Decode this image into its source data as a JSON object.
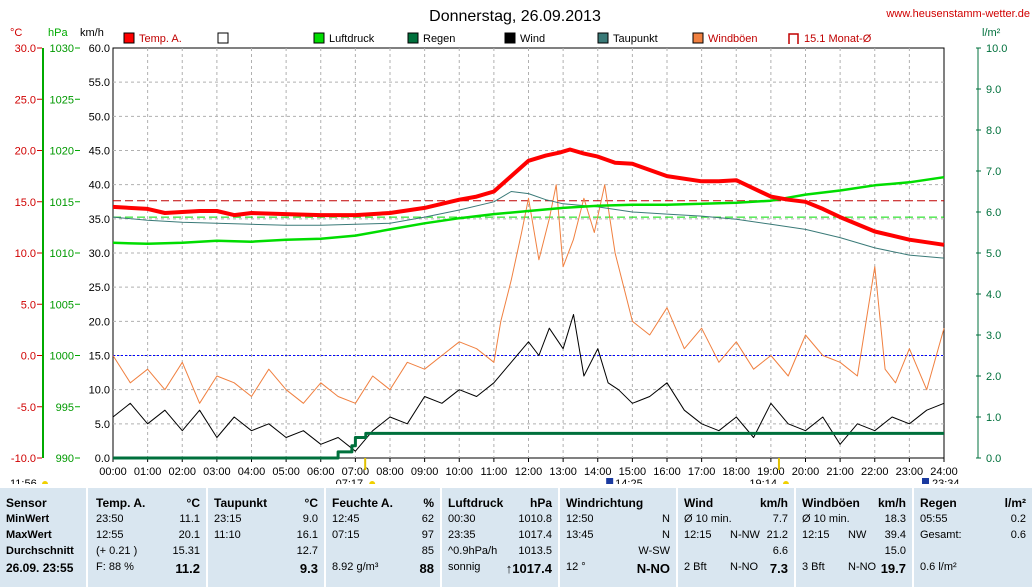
{
  "title": "Donnerstag, 26.09.2013",
  "website": "www.heusenstamm-wetter.de",
  "units": {
    "temp": "°C",
    "pressure": "hPa",
    "speed": "km/h",
    "rain": "l/m²"
  },
  "legend": [
    {
      "label": "Temp. A.",
      "color": "#ff0000"
    },
    {
      "label": "",
      "color": "#ffffff"
    },
    {
      "label": "Luftdruck",
      "color": "#00dd00"
    },
    {
      "label": "Regen",
      "color": "#00703c"
    },
    {
      "label": "Wind",
      "color": "#000000"
    },
    {
      "label": "Taupunkt",
      "color": "#3a7a78"
    },
    {
      "label": "Windböen",
      "color": "#f08040"
    },
    {
      "label": "15.1 Monat-Ø",
      "color": "#c00000"
    }
  ],
  "markers": {
    "sunrise": "07:17",
    "sunset": "19:14",
    "start": "11:56",
    "end": "23:34",
    "wind_max_time": "14:25"
  },
  "chart_data": {
    "type": "line",
    "x_ticks": [
      "00:00",
      "01:00",
      "02:00",
      "03:00",
      "04:00",
      "05:00",
      "06:00",
      "07:00",
      "08:00",
      "09:00",
      "10:00",
      "11:00",
      "12:00",
      "13:00",
      "14:00",
      "15:00",
      "16:00",
      "17:00",
      "18:00",
      "19:00",
      "20:00",
      "21:00",
      "22:00",
      "23:00",
      "24:00"
    ],
    "axes": {
      "temp": {
        "label": "°C",
        "ylim": [
          -10,
          30
        ],
        "ticks": [
          "30.0",
          "25.0",
          "20.0",
          "15.0",
          "10.0",
          "5.0",
          "0.0",
          "-5.0",
          "-10.0"
        ]
      },
      "pressure": {
        "label": "hPa",
        "ylim": [
          990,
          1030
        ],
        "ticks": [
          "1030",
          "1025",
          "1020",
          "1015",
          "1010",
          "1005",
          "1000",
          "995",
          "990"
        ]
      },
      "wind": {
        "label": "km/h",
        "ylim": [
          0,
          60
        ],
        "ticks": [
          "60.0",
          "55.0",
          "50.0",
          "45.0",
          "40.0",
          "35.0",
          "30.0",
          "25.0",
          "20.0",
          "15.0",
          "10.0",
          "5.0",
          "0.0"
        ]
      },
      "rain": {
        "label": "l/m²",
        "ylim": [
          0,
          10
        ],
        "ticks": [
          "10.0",
          "9.0",
          "8.0",
          "7.0",
          "6.0",
          "5.0",
          "4.0",
          "3.0",
          "2.0",
          "1.0",
          "0.0"
        ]
      }
    },
    "reference_lines": [
      {
        "name": "15.1 Monat-Ø",
        "axis": "temp",
        "value": 15.1,
        "color": "#c00000"
      },
      {
        "name": "zero",
        "axis": "temp",
        "value": 0.0,
        "color": "#0000ff"
      },
      {
        "name": "pressure-ref",
        "axis": "pressure",
        "value": 1013.5,
        "color": "#00dd00"
      }
    ],
    "series": [
      {
        "name": "Temp. A.",
        "axis": "temp",
        "color": "#ff0000",
        "x": [
          0,
          1,
          1.5,
          2,
          2.5,
          3,
          3.5,
          4,
          5,
          6,
          7,
          8,
          9,
          9.5,
          10,
          10.5,
          11,
          11.5,
          12,
          12.5,
          12.9,
          13.2,
          13.6,
          14,
          14.5,
          15,
          16,
          17,
          17.5,
          18,
          18.5,
          19,
          19.5,
          20,
          20.5,
          21,
          22,
          23,
          24
        ],
        "y": [
          14.5,
          14.3,
          13.9,
          14.0,
          14.1,
          14.1,
          13.7,
          13.9,
          13.8,
          13.7,
          13.7,
          13.9,
          14.4,
          14.8,
          15.2,
          15.5,
          16.0,
          17.5,
          19.0,
          19.5,
          19.8,
          20.1,
          19.7,
          19.4,
          18.8,
          18.7,
          17.5,
          17.0,
          17.0,
          17.1,
          16.3,
          15.5,
          15.2,
          15.0,
          14.3,
          13.5,
          12.1,
          11.3,
          10.8
        ]
      },
      {
        "name": "Taupunkt",
        "axis": "temp",
        "color": "#3a7a78",
        "x": [
          0,
          1,
          2,
          3,
          4,
          5,
          6,
          7,
          8,
          9,
          10,
          11,
          11.5,
          12,
          12.5,
          13,
          14,
          15,
          16,
          17,
          18,
          19,
          20,
          21,
          22,
          23,
          24
        ],
        "y": [
          13.5,
          13.2,
          13.0,
          12.9,
          12.8,
          12.7,
          12.7,
          12.8,
          12.9,
          13.5,
          14.2,
          15.0,
          16.0,
          15.8,
          15.2,
          14.8,
          14.5,
          14.0,
          13.8,
          13.6,
          13.3,
          12.8,
          12.3,
          11.5,
          10.5,
          9.8,
          9.5
        ]
      },
      {
        "name": "Luftdruck",
        "axis": "pressure",
        "color": "#00dd00",
        "x": [
          0,
          1,
          2,
          3,
          4,
          5,
          6,
          7,
          8,
          9,
          10,
          11,
          12,
          13,
          14,
          15,
          16,
          17,
          18,
          19,
          20,
          21,
          22,
          23,
          24
        ],
        "y": [
          1011.0,
          1010.9,
          1011.0,
          1011.2,
          1011.1,
          1011.3,
          1011.4,
          1011.7,
          1012.3,
          1012.9,
          1013.4,
          1013.8,
          1014.1,
          1014.4,
          1014.6,
          1014.7,
          1014.7,
          1014.8,
          1014.9,
          1015.1,
          1015.7,
          1016.1,
          1016.6,
          1016.9,
          1017.4
        ]
      },
      {
        "name": "Regen",
        "axis": "rain",
        "color": "#00703c",
        "x": [
          0,
          6.0,
          6.5,
          6.9,
          7.0,
          7.3,
          24
        ],
        "y": [
          0,
          0,
          0.15,
          0.3,
          0.5,
          0.6,
          0.6
        ]
      },
      {
        "name": "Wind",
        "axis": "wind",
        "color": "#000000",
        "x": [
          0,
          0.5,
          1,
          1.5,
          2,
          2.5,
          3,
          3.5,
          4,
          4.5,
          5,
          5.5,
          6,
          6.5,
          7,
          7.5,
          8,
          8.5,
          9,
          9.5,
          10,
          10.5,
          11,
          11.5,
          12,
          12.3,
          12.6,
          13,
          13.3,
          13.6,
          14,
          14.3,
          14.6,
          15,
          15.5,
          16,
          16.5,
          17,
          17.5,
          18,
          18.5,
          19,
          19.5,
          20,
          20.5,
          21,
          21.5,
          22,
          22.5,
          23,
          23.5,
          24
        ],
        "y": [
          6,
          8,
          5,
          7,
          4,
          7,
          3,
          6,
          4,
          5,
          3,
          4,
          2,
          3,
          1,
          4,
          6,
          5,
          9,
          8,
          10,
          9,
          11,
          14,
          17,
          15,
          19,
          16,
          21,
          12,
          16,
          11,
          10,
          8,
          9,
          11,
          7,
          5,
          4,
          6,
          3,
          8,
          5,
          4,
          6,
          2,
          5,
          4,
          6,
          5,
          7,
          8
        ]
      },
      {
        "name": "Windböen",
        "axis": "wind",
        "color": "#f08040",
        "x": [
          0,
          0.5,
          1,
          1.5,
          2,
          2.5,
          3,
          3.5,
          4,
          4.5,
          5,
          5.5,
          6,
          6.5,
          7,
          7.5,
          8,
          8.5,
          9,
          9.5,
          10,
          10.5,
          11,
          11.2,
          11.5,
          11.8,
          12,
          12.3,
          12.6,
          12.8,
          13,
          13.3,
          13.6,
          13.9,
          14.2,
          14.5,
          14.8,
          15,
          15.5,
          16,
          16.5,
          17,
          17.5,
          18,
          18.5,
          19,
          19.5,
          20,
          20.5,
          21,
          21.5,
          22,
          22.3,
          22.6,
          23,
          23.5,
          24
        ],
        "y": [
          15,
          11,
          13,
          10,
          14,
          8,
          12,
          11,
          9,
          13,
          10,
          8,
          11,
          9,
          8,
          12,
          10,
          14,
          13,
          15,
          17,
          16,
          14,
          20,
          26,
          33,
          38,
          29,
          35,
          40,
          28,
          32,
          38,
          33,
          40,
          30,
          24,
          20,
          18,
          22,
          16,
          19,
          14,
          17,
          13,
          15,
          12,
          18,
          15,
          14,
          12,
          28,
          13,
          11,
          16,
          10,
          19
        ]
      }
    ]
  },
  "summary": {
    "row_labels": [
      "Sensor",
      "MinWert",
      "MaxWert",
      "Durchschnitt",
      "26.09. 23:55"
    ],
    "columns": [
      {
        "header": "Temp. A.",
        "unit": "°C",
        "rows": [
          [
            "23:50",
            "",
            "11.1"
          ],
          [
            "12:55",
            "",
            "20.1"
          ],
          [
            "(+ 0.21 )",
            "",
            "15.31"
          ],
          [
            "F: 88 %",
            "",
            "11.2"
          ]
        ]
      },
      {
        "header": "Taupunkt",
        "unit": "°C",
        "rows": [
          [
            "23:15",
            "",
            "9.0"
          ],
          [
            "11:10",
            "",
            "16.1"
          ],
          [
            "",
            "",
            "12.7"
          ],
          [
            "",
            "",
            "9.3"
          ]
        ]
      },
      {
        "header": "Feuchte A.",
        "unit": "%",
        "rows": [
          [
            "12:45",
            "",
            "62"
          ],
          [
            "07:15",
            "",
            "97"
          ],
          [
            "",
            "",
            "85"
          ],
          [
            "8.92 g/m³",
            "",
            "88"
          ]
        ]
      },
      {
        "header": "Luftdruck",
        "unit": "hPa",
        "rows": [
          [
            "00:30",
            "",
            "1010.8"
          ],
          [
            "23:35",
            "",
            "1017.4"
          ],
          [
            "^0.9hPa/h",
            "",
            "1013.5"
          ],
          [
            "sonnig",
            "",
            "↑1017.4"
          ]
        ]
      },
      {
        "header": "Windrichtung",
        "unit": "",
        "rows": [
          [
            "12:50",
            "",
            "N"
          ],
          [
            "13:45",
            "",
            "N"
          ],
          [
            "",
            "",
            "W-SW"
          ],
          [
            "12 °",
            "",
            "N-NO"
          ]
        ]
      },
      {
        "header": "Wind",
        "unit": "km/h",
        "rows": [
          [
            "Ø 10 min.",
            "",
            "7.7"
          ],
          [
            "12:15",
            "N-NW",
            "21.2"
          ],
          [
            "",
            "",
            "6.6"
          ],
          [
            "2 Bft",
            "N-NO",
            "7.3"
          ]
        ]
      },
      {
        "header": "Windböen",
        "unit": "km/h",
        "rows": [
          [
            "Ø 10 min.",
            "",
            "18.3"
          ],
          [
            "12:15",
            "NW",
            "39.4"
          ],
          [
            "",
            "",
            "15.0"
          ],
          [
            "3 Bft",
            "N-NO",
            "19.7"
          ]
        ]
      },
      {
        "header": "Regen",
        "unit": "l/m²",
        "rows": [
          [
            "05:55",
            "",
            "0.2"
          ],
          [
            "Gesamt:",
            "",
            "0.6"
          ],
          [
            "",
            "",
            ""
          ],
          [
            "0.6 l/m²",
            "",
            ""
          ]
        ]
      }
    ]
  }
}
